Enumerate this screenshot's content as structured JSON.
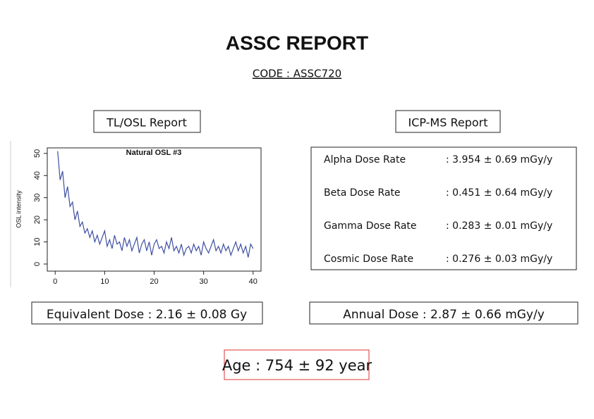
{
  "header": {
    "title": "ASSC REPORT",
    "code": "CODE : ASSC720"
  },
  "tl_osl": {
    "heading": "TL/OSL Report",
    "equivalent_dose": "Equivalent Dose : 2.16 ± 0.08 Gy"
  },
  "chart_data": {
    "type": "line",
    "title": "Natural OSL #3",
    "ylabel": "OSL intensity",
    "color": "#3f4fa0",
    "x": [
      0.5,
      1,
      1.5,
      2,
      2.5,
      3,
      3.5,
      4,
      4.5,
      5,
      5.5,
      6,
      6.5,
      7,
      7.5,
      8,
      8.5,
      9,
      9.5,
      10,
      10.5,
      11,
      11.5,
      12,
      12.5,
      13,
      13.5,
      14,
      14.5,
      15,
      15.5,
      16,
      16.5,
      17,
      17.5,
      18,
      18.5,
      19,
      19.5,
      20,
      20.5,
      21,
      21.5,
      22,
      22.5,
      23,
      23.5,
      24,
      24.5,
      25,
      25.5,
      26,
      26.5,
      27,
      27.5,
      28,
      28.5,
      29,
      29.5,
      30,
      30.5,
      31,
      31.5,
      32,
      32.5,
      33,
      33.5,
      34,
      34.5,
      35,
      35.5,
      36,
      36.5,
      37,
      37.5,
      38,
      38.5,
      39,
      39.5,
      40
    ],
    "values": [
      51,
      38,
      42,
      30,
      35,
      26,
      28,
      20,
      24,
      17,
      19,
      14,
      16,
      12,
      15,
      10,
      13,
      9,
      12,
      15,
      8,
      11,
      7,
      13,
      9,
      10,
      6,
      12,
      8,
      11,
      6,
      9,
      12,
      5,
      9,
      11,
      6,
      10,
      4,
      9,
      11,
      7,
      8,
      5,
      10,
      7,
      12,
      6,
      8,
      5,
      9,
      4,
      7,
      8,
      5,
      9,
      6,
      8,
      4,
      10,
      7,
      5,
      8,
      11,
      6,
      8,
      5,
      9,
      6,
      8,
      4,
      7,
      10,
      6,
      9,
      5,
      8,
      3,
      9,
      7
    ],
    "xlim": [
      -1.6,
      41.6
    ],
    "ylim": [
      -3.2,
      52.5
    ],
    "xticks": [
      0,
      10,
      20,
      30,
      40
    ],
    "yticks": [
      0,
      10,
      20,
      30,
      40,
      50
    ]
  },
  "icp_ms": {
    "heading": "ICP-MS Report",
    "rows": [
      [
        "Alpha Dose Rate",
        ": 3.954 ± 0.69 mGy/y"
      ],
      [
        "Beta Dose Rate",
        ": 0.451 ± 0.64 mGy/y"
      ],
      [
        "Gamma Dose Rate",
        ": 0.283 ± 0.01 mGy/y"
      ],
      [
        "Cosmic Dose Rate",
        ": 0.276 ± 0.03 mGy/y"
      ]
    ],
    "annual_dose": "Annual Dose : 2.87 ± 0.66 mGy/y"
  },
  "age": "Age : 754 ± 92 year"
}
